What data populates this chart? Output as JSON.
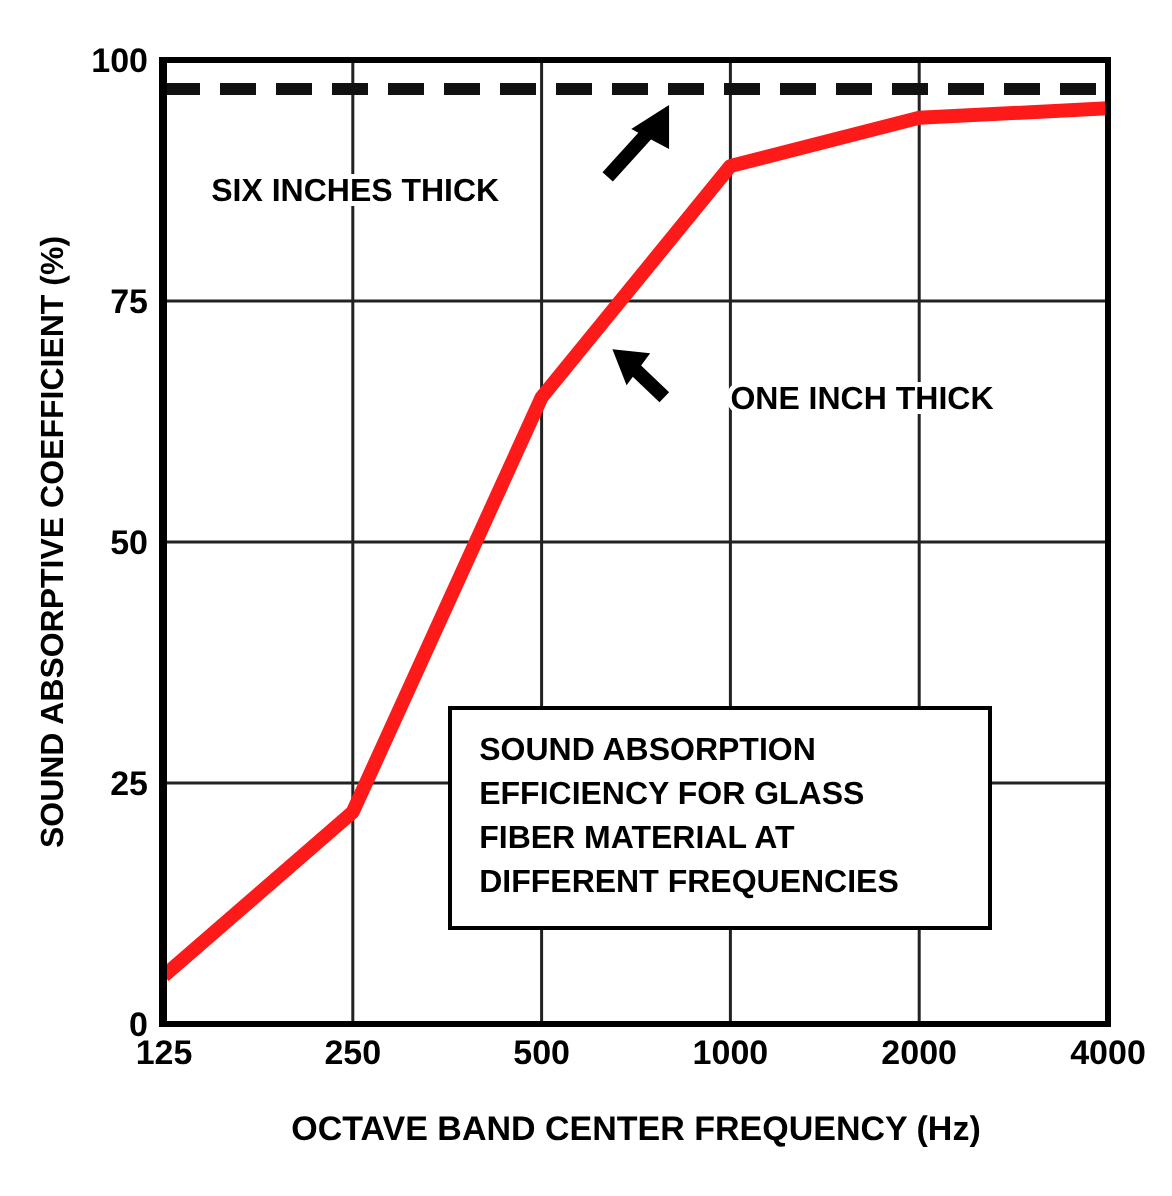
{
  "chart_data": {
    "type": "line",
    "xlabel": "OCTAVE BAND CENTER FREQUENCY (Hz)",
    "ylabel": "SOUND ABSORPTIVE COEFFICIENT (%)",
    "categories": [
      "125",
      "250",
      "500",
      "1000",
      "2000",
      "4000"
    ],
    "series": [
      {
        "color": "#ff1a1a",
        "values": [
          5,
          22,
          65,
          89,
          94,
          95
        ],
        "line_style": "solid"
      },
      {
        "color": "#111111",
        "values": [
          97,
          97,
          97,
          97,
          97,
          97
        ],
        "line_style": "dashed"
      }
    ],
    "ylim": [
      0,
      100
    ],
    "yticks": [
      0,
      25,
      50,
      75,
      100
    ],
    "grid": true,
    "marker": "none",
    "annotations": [
      "SIX INCHES THICK",
      "ONE INCH THICK",
      "SOUND ABSORPTION EFFICIENCY FOR GLASS FIBER MATERIAL AT DIFFERENT FREQUENCIES"
    ]
  }
}
